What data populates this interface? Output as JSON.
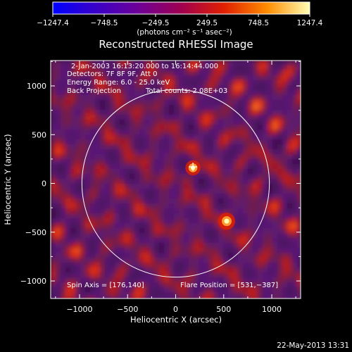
{
  "chart_data": {
    "type": "heatmap",
    "title": "Reconstructed RHESSI Image",
    "xlabel": "Heliocentric X (arcsec)",
    "ylabel": "Heliocentric Y (arcsec)",
    "xlim": [
      -1300,
      1300
    ],
    "ylim": [
      -1180,
      1260
    ],
    "x_ticks": [
      -1000,
      -500,
      0,
      500,
      1000
    ],
    "y_ticks": [
      -1000,
      -500,
      0,
      500,
      1000
    ],
    "x_tick_labels": [
      "−1000",
      "−500",
      "0",
      "500",
      "1000"
    ],
    "y_tick_labels": [
      "−1000",
      "−500",
      "0",
      "500",
      "1000"
    ],
    "colorbar": {
      "min": -1247.4,
      "max": 1247.4,
      "ticks": [
        -1247.4,
        -748.5,
        -249.5,
        249.5,
        748.5,
        1247.4
      ],
      "tick_labels": [
        "−1247.4",
        "−748.5",
        "−249.5",
        "249.5",
        "748.5",
        "1247.4"
      ],
      "colors": [
        "#0000ff",
        "#3a00c8",
        "#6e0096",
        "#a00050",
        "#e02000",
        "#ff8c00",
        "#ffffb4"
      ],
      "units": "(photons cm⁻² s⁻¹ asec⁻²)"
    },
    "solar_disk": {
      "center": [
        0,
        0
      ],
      "radius": 975
    },
    "flare_position": [
      531,
      -387
    ],
    "marker": [
      180,
      170
    ],
    "sources": [
      {
        "x": 531,
        "y": -387,
        "value": 1247
      },
      {
        "x": 180,
        "y": 160,
        "value": 1000
      }
    ]
  },
  "annotations": {
    "time_range": "2-Jan-2003 16:13:20.000 to 16:14:44.000",
    "detectors": "Detectors: 7F 8F 9F, Att 0",
    "energy": "Energy Range: 6.0 - 25.0 keV",
    "method": "Back Projection",
    "counts": "Total counts: 2.08E+03",
    "spin_axis": "Spin Axis = [176,140]",
    "flare_label": "Flare Position = [531,−387]"
  },
  "footer": {
    "timestamp": "22-May-2013 13:31"
  }
}
